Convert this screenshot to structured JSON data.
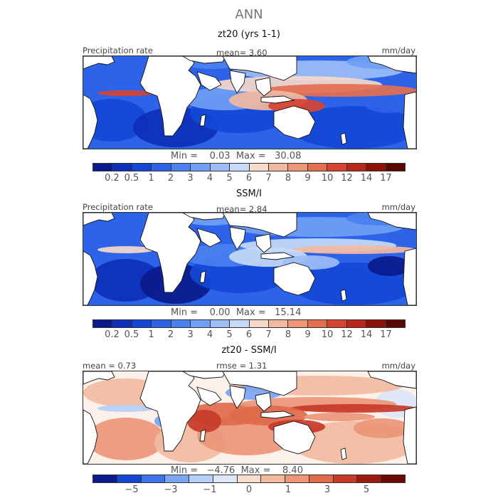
{
  "figure_title": "ANN",
  "panels": [
    {
      "title": "zt20 (yrs 1-1)",
      "left_label": "Precipitation rate",
      "center_label": "mean=    3.60",
      "right_label": "mm/day",
      "minmax": "Min =    0.03  Max =   30.08",
      "ticks": [
        "0.2",
        "0.5",
        "1",
        "2",
        "3",
        "4",
        "5",
        "6",
        "7",
        "8",
        "9",
        "10",
        "12",
        "14",
        "17"
      ],
      "kind": "abs_model"
    },
    {
      "title": "SSM/I",
      "left_label": "Precipitation rate",
      "center_label": "mean=    2.84",
      "right_label": "mm/day",
      "minmax": "Min =    0.00  Max =   15.14",
      "ticks": [
        "0.2",
        "0.5",
        "1",
        "2",
        "3",
        "4",
        "5",
        "6",
        "7",
        "8",
        "9",
        "10",
        "12",
        "14",
        "17"
      ],
      "kind": "abs_obs"
    },
    {
      "title": "zt20 - SSM/I",
      "left_label": "mean =   0.73",
      "center_label": "rmse =    1.31",
      "right_label": "mm/day",
      "minmax": "Min =   −4.76  Max =    8.40",
      "ticks": [
        "−5",
        "−3",
        "−1",
        "0",
        "1",
        "3",
        "5"
      ],
      "kind": "diff"
    }
  ],
  "colors": {
    "abs_scale": [
      "#0a1a8c",
      "#0e2fb8",
      "#1446d6",
      "#2d63e8",
      "#4a80f0",
      "#6f9ef4",
      "#9cbdf6",
      "#c6d9f7",
      "#f6d9cb",
      "#f2b9a1",
      "#ec9677",
      "#e46f4f",
      "#d64330",
      "#b8261c",
      "#8c1208",
      "#5a0602"
    ],
    "diff_scale": [
      "#0a1a8c",
      "#1446d6",
      "#3d74ee",
      "#7aa6f5",
      "#b5cff8",
      "#dde7f7",
      "#f6dccc",
      "#f2bba0",
      "#ec9677",
      "#e06a4a",
      "#c83a28",
      "#9c1a0e",
      "#6a0804"
    ],
    "land": "#ffffff",
    "coast": "#111111"
  }
}
